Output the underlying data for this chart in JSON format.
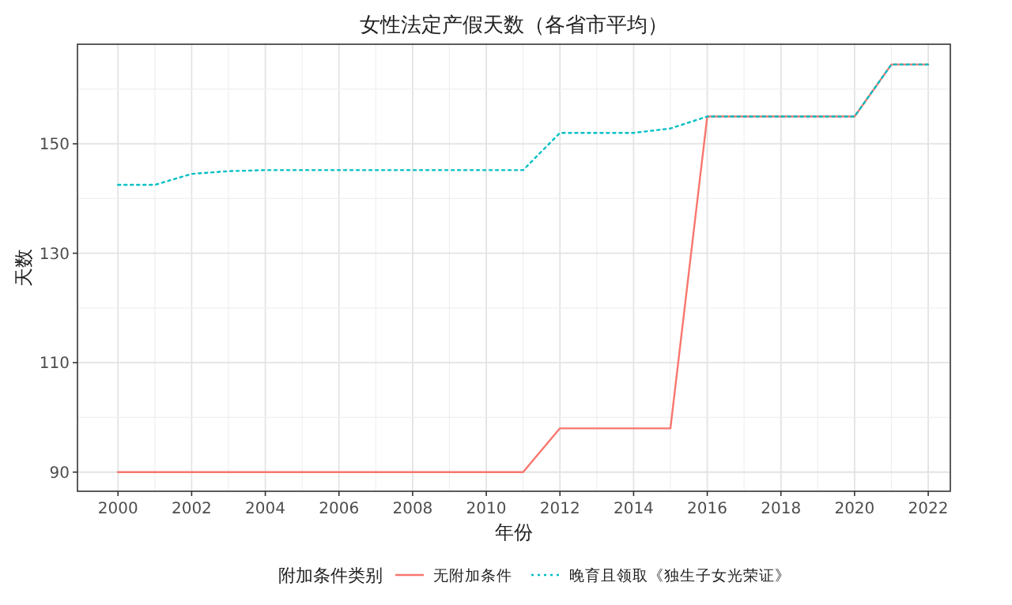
{
  "chart_data": {
    "type": "line",
    "title": "女性法定产假天数（各省市平均）",
    "xlabel": "年份",
    "ylabel": "天数",
    "legend_title": "附加条件类别",
    "legend": "bottom",
    "grid": true,
    "x": [
      2000,
      2001,
      2002,
      2003,
      2004,
      2005,
      2006,
      2007,
      2008,
      2009,
      2010,
      2011,
      2012,
      2013,
      2014,
      2015,
      2016,
      2017,
      2018,
      2019,
      2020,
      2021,
      2022
    ],
    "xlim": [
      1998.9,
      2022.6
    ],
    "xticks": [
      2000,
      2002,
      2004,
      2006,
      2008,
      2010,
      2012,
      2014,
      2016,
      2018,
      2020,
      2022
    ],
    "ylim": [
      86.5,
      168.2
    ],
    "yticks": [
      90,
      110,
      130,
      150
    ],
    "series": [
      {
        "name": "无附加条件",
        "color": "#f8766d",
        "line_style": "solid",
        "values": [
          90,
          90,
          90,
          90,
          90,
          90,
          90,
          90,
          90,
          90,
          90,
          90,
          98,
          98,
          98,
          98,
          155,
          155,
          155,
          155,
          155,
          164.5,
          164.5
        ]
      },
      {
        "name": "晚育且领取《独生子女光荣证》",
        "color": "#00bfc4",
        "line_style": "dotted",
        "values": [
          142.5,
          142.5,
          144.5,
          145,
          145.2,
          145.2,
          145.2,
          145.2,
          145.2,
          145.2,
          145.2,
          145.2,
          152,
          152,
          152,
          152.8,
          155,
          155,
          155,
          155,
          155,
          164.5,
          164.5
        ]
      }
    ]
  }
}
